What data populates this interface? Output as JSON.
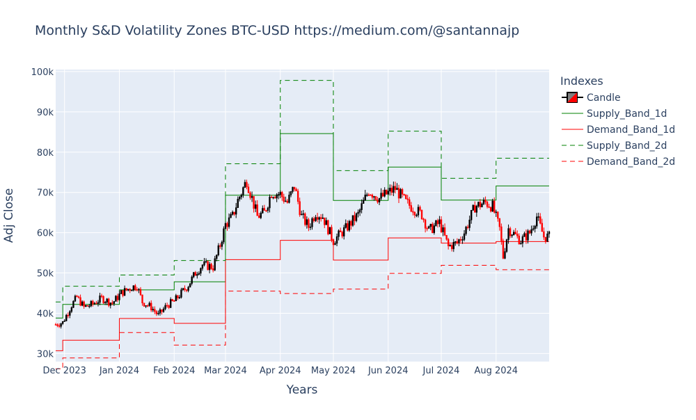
{
  "chart_data": {
    "type": "candlestick",
    "title": "Monthly S&D Volatility Zones BTC-USD https://medium.com/@santannajp",
    "xlabel": "Years",
    "ylabel": "Adj Close",
    "x_range": [
      "2023-11-26",
      "2024-08-31"
    ],
    "ylim": [
      28000,
      100500
    ],
    "y_ticks": [
      30000,
      40000,
      50000,
      60000,
      70000,
      80000,
      90000,
      100000
    ],
    "y_tick_labels": [
      "30k",
      "40k",
      "50k",
      "60k",
      "70k",
      "80k",
      "90k",
      "100k"
    ],
    "x_ticks": [
      "2023-12-01",
      "2024-01-01",
      "2024-02-01",
      "2024-03-01",
      "2024-04-01",
      "2024-05-01",
      "2024-06-01",
      "2024-07-01",
      "2024-08-01"
    ],
    "x_tick_labels": [
      "Dec 2023",
      "Jan 2024",
      "Feb 2024",
      "Mar 2024",
      "Apr 2024",
      "May 2024",
      "Jun 2024",
      "Jul 2024",
      "Aug 2024"
    ],
    "grid": true,
    "legend_title": "Indexes",
    "legend_position": "right",
    "colors": {
      "increasing": "#000000",
      "decreasing": "#ff0000",
      "supply": "#008000",
      "demand": "#ff0000",
      "plot_bg": "#e5ecf6",
      "grid": "#ffffff"
    },
    "close_anchors": [
      [
        "2023-11-26",
        37200
      ],
      [
        "2023-11-30",
        37700
      ],
      [
        "2023-12-05",
        42000
      ],
      [
        "2023-12-08",
        44000
      ],
      [
        "2023-12-12",
        41500
      ],
      [
        "2023-12-17",
        42300
      ],
      [
        "2023-12-22",
        43700
      ],
      [
        "2023-12-28",
        42500
      ],
      [
        "2024-01-02",
        45000
      ],
      [
        "2024-01-08",
        46500
      ],
      [
        "2024-01-11",
        46800
      ],
      [
        "2024-01-14",
        42800
      ],
      [
        "2024-01-19",
        41500
      ],
      [
        "2024-01-23",
        39500
      ],
      [
        "2024-01-28",
        42000
      ],
      [
        "2024-02-01",
        43000
      ],
      [
        "2024-02-09",
        47000
      ],
      [
        "2024-02-13",
        50000
      ],
      [
        "2024-02-17",
        52000
      ],
      [
        "2024-02-23",
        51500
      ],
      [
        "2024-02-27",
        57000
      ],
      [
        "2024-03-01",
        62000
      ],
      [
        "2024-03-05",
        64000
      ],
      [
        "2024-03-08",
        68000
      ],
      [
        "2024-03-13",
        73000
      ],
      [
        "2024-03-19",
        64000
      ],
      [
        "2024-03-23",
        65000
      ],
      [
        "2024-03-27",
        70000
      ],
      [
        "2024-04-01",
        69500
      ],
      [
        "2024-04-05",
        67500
      ],
      [
        "2024-04-09",
        71500
      ],
      [
        "2024-04-13",
        64000
      ],
      [
        "2024-04-17",
        61500
      ],
      [
        "2024-04-21",
        65000
      ],
      [
        "2024-04-25",
        64000
      ],
      [
        "2024-05-01",
        58000
      ],
      [
        "2024-05-08",
        61000
      ],
      [
        "2024-05-15",
        64500
      ],
      [
        "2024-05-21",
        70500
      ],
      [
        "2024-05-27",
        68500
      ],
      [
        "2024-06-05",
        71000
      ],
      [
        "2024-06-11",
        67500
      ],
      [
        "2024-06-20",
        64500
      ],
      [
        "2024-06-24",
        60500
      ],
      [
        "2024-06-30",
        62500
      ],
      [
        "2024-07-05",
        56500
      ],
      [
        "2024-07-10",
        57500
      ],
      [
        "2024-07-14",
        60000
      ],
      [
        "2024-07-20",
        66500
      ],
      [
        "2024-07-26",
        67500
      ],
      [
        "2024-07-30",
        66500
      ],
      [
        "2024-08-03",
        61000
      ],
      [
        "2024-08-05",
        54000
      ],
      [
        "2024-08-08",
        61000
      ],
      [
        "2024-08-15",
        58000
      ],
      [
        "2024-08-20",
        60000
      ],
      [
        "2024-08-24",
        64000
      ],
      [
        "2024-08-28",
        59000
      ],
      [
        "2024-08-31",
        59000
      ]
    ],
    "series": [
      {
        "name": "Candle",
        "kind": "candlestick"
      },
      {
        "name": "Supply_Band_1d",
        "kind": "step",
        "dash": "solid",
        "color": "#008000",
        "points": [
          [
            "2023-11-26",
            38800
          ],
          [
            "2023-11-30",
            42200
          ],
          [
            "2024-01-01",
            45800
          ],
          [
            "2024-02-01",
            47800
          ],
          [
            "2024-03-01",
            69300
          ],
          [
            "2024-04-01",
            84600
          ],
          [
            "2024-05-01",
            68000
          ],
          [
            "2024-06-01",
            76300
          ],
          [
            "2024-07-01",
            68100
          ],
          [
            "2024-08-01",
            71600
          ],
          [
            "2024-08-31",
            71600
          ]
        ]
      },
      {
        "name": "Demand_Band_1d",
        "kind": "step",
        "dash": "solid",
        "color": "#ff0000",
        "points": [
          [
            "2023-11-26",
            30700
          ],
          [
            "2023-11-30",
            33300
          ],
          [
            "2024-01-01",
            38700
          ],
          [
            "2024-02-01",
            37500
          ],
          [
            "2024-03-01",
            53300
          ],
          [
            "2024-04-01",
            58100
          ],
          [
            "2024-05-01",
            53200
          ],
          [
            "2024-06-01",
            58700
          ],
          [
            "2024-07-01",
            57400
          ],
          [
            "2024-08-01",
            57800
          ],
          [
            "2024-08-31",
            57800
          ]
        ]
      },
      {
        "name": "Supply_Band_2d",
        "kind": "step",
        "dash": "dash",
        "color": "#008000",
        "points": [
          [
            "2023-11-26",
            42800
          ],
          [
            "2023-11-30",
            46700
          ],
          [
            "2024-01-01",
            49500
          ],
          [
            "2024-02-01",
            53100
          ],
          [
            "2024-03-01",
            77100
          ],
          [
            "2024-04-01",
            97800
          ],
          [
            "2024-05-01",
            75400
          ],
          [
            "2024-06-01",
            85200
          ],
          [
            "2024-07-01",
            73500
          ],
          [
            "2024-08-01",
            78500
          ],
          [
            "2024-08-31",
            78500
          ]
        ]
      },
      {
        "name": "Demand_Band_2d",
        "kind": "step",
        "dash": "dash",
        "color": "#ff0000",
        "points": [
          [
            "2023-11-26",
            26200
          ],
          [
            "2023-11-30",
            28900
          ],
          [
            "2024-01-01",
            35200
          ],
          [
            "2024-02-01",
            32100
          ],
          [
            "2024-03-01",
            45500
          ],
          [
            "2024-04-01",
            44900
          ],
          [
            "2024-05-01",
            46000
          ],
          [
            "2024-06-01",
            49900
          ],
          [
            "2024-07-01",
            51900
          ],
          [
            "2024-08-01",
            50800
          ],
          [
            "2024-08-31",
            50800
          ]
        ]
      }
    ]
  }
}
